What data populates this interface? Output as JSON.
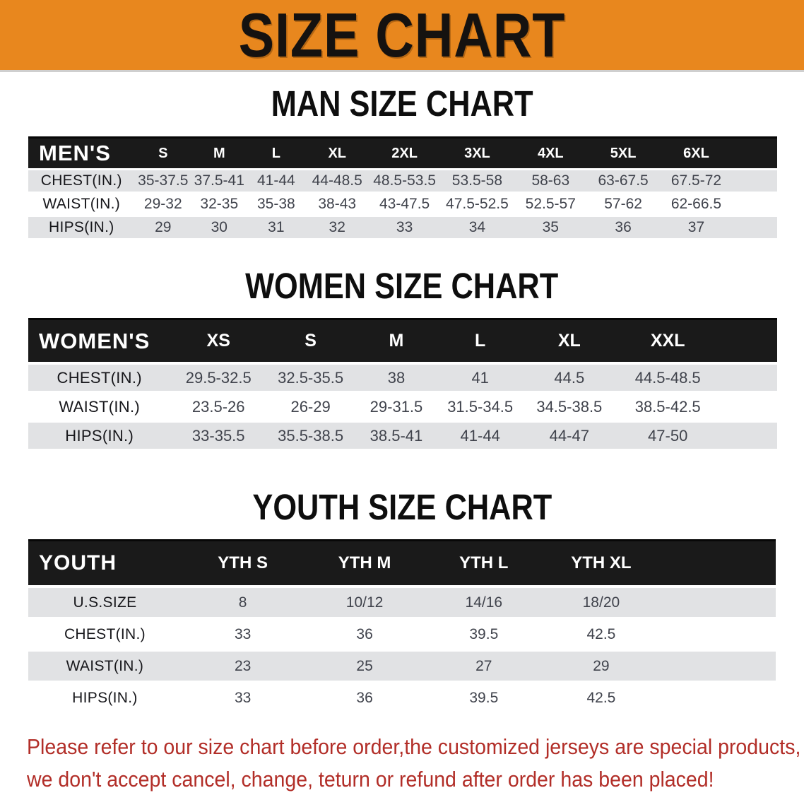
{
  "banner": {
    "title": "SIZE CHART",
    "bg_color": "#E8871E"
  },
  "men": {
    "heading": "MAN SIZE CHART",
    "label": "MEN'S",
    "sizes": [
      "S",
      "M",
      "L",
      "XL",
      "2XL",
      "3XL",
      "4XL",
      "5XL",
      "6XL"
    ],
    "rows": [
      {
        "label": "CHEST(IN.)",
        "values": [
          "35-37.5",
          "37.5-41",
          "41-44",
          "44-48.5",
          "48.5-53.5",
          "53.5-58",
          "58-63",
          "63-67.5",
          "67.5-72"
        ]
      },
      {
        "label": "WAIST(IN.)",
        "values": [
          "29-32",
          "32-35",
          "35-38",
          "38-43",
          "43-47.5",
          "47.5-52.5",
          "52.5-57",
          "57-62",
          "62-66.5"
        ]
      },
      {
        "label": "HIPS(IN.)",
        "values": [
          "29",
          "30",
          "31",
          "32",
          "33",
          "34",
          "35",
          "36",
          "37"
        ]
      }
    ]
  },
  "women": {
    "heading": "WOMEN SIZE CHART",
    "label": "WOMEN'S",
    "sizes": [
      "XS",
      "S",
      "M",
      "L",
      "XL",
      "XXL"
    ],
    "rows": [
      {
        "label": "CHEST(IN.)",
        "values": [
          "29.5-32.5",
          "32.5-35.5",
          "38",
          "41",
          "44.5",
          "44.5-48.5"
        ]
      },
      {
        "label": "WAIST(IN.)",
        "values": [
          "23.5-26",
          "26-29",
          "29-31.5",
          "31.5-34.5",
          "34.5-38.5",
          "38.5-42.5"
        ]
      },
      {
        "label": "HIPS(IN.)",
        "values": [
          "33-35.5",
          "35.5-38.5",
          "38.5-41",
          "41-44",
          "44-47",
          "47-50"
        ]
      }
    ]
  },
  "youth": {
    "heading": "YOUTH SIZE CHART",
    "label": "YOUTH",
    "sizes": [
      "YTH S",
      "YTH M",
      "YTH L",
      "YTH XL"
    ],
    "rows": [
      {
        "label": "U.S.SIZE",
        "values": [
          "8",
          "10/12",
          "14/16",
          "18/20"
        ]
      },
      {
        "label": "CHEST(IN.)",
        "values": [
          "33",
          "36",
          "39.5",
          "42.5"
        ]
      },
      {
        "label": "WAIST(IN.)",
        "values": [
          "23",
          "25",
          "27",
          "29"
        ]
      },
      {
        "label": "HIPS(IN.)",
        "values": [
          "33",
          "36",
          "39.5",
          "42.5"
        ]
      }
    ]
  },
  "disclaimer": {
    "line1": "Please refer to our size chart before order,the customized jerseys are special products,",
    "line2": "we don't accept cancel, change, teturn or refund after order has been placed!",
    "color": "#b22e28"
  }
}
